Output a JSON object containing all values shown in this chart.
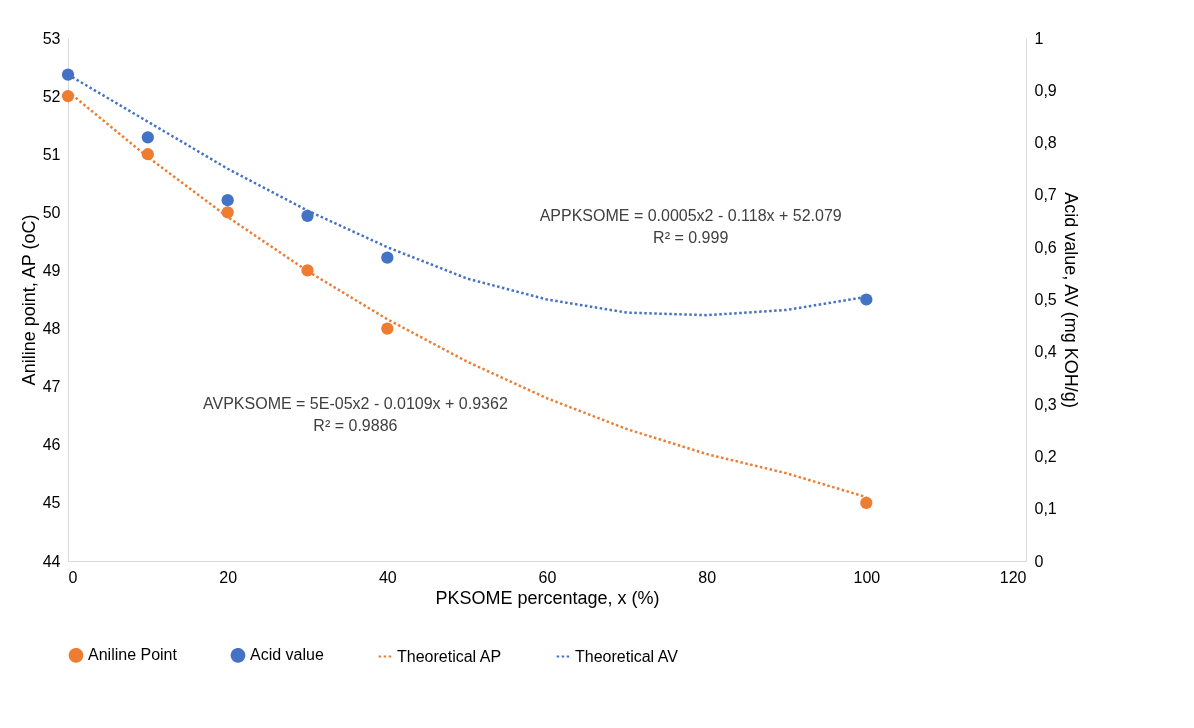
{
  "chart_data": {
    "type": "scatter",
    "xlabel": "PKSOME percentage, x (%)",
    "ylabel": "Aniline point, AP (oC)",
    "y2label": "Acid value, AV (mg KOH/g)",
    "xlim": [
      0,
      120
    ],
    "xticks": [
      0,
      20,
      40,
      60,
      80,
      100,
      120
    ],
    "ylim": [
      44,
      53
    ],
    "yticks": [
      44,
      45,
      46,
      47,
      48,
      49,
      50,
      51,
      52,
      53
    ],
    "y2lim": [
      0,
      1
    ],
    "y2ticks": [
      {
        "value": 0,
        "label": "0"
      },
      {
        "value": 0.1,
        "label": "0,1"
      },
      {
        "value": 0.2,
        "label": "0,2"
      },
      {
        "value": 0.3,
        "label": "0,3"
      },
      {
        "value": 0.4,
        "label": "0,4"
      },
      {
        "value": 0.5,
        "label": "0,5"
      },
      {
        "value": 0.6,
        "label": "0,6"
      },
      {
        "value": 0.7,
        "label": "0,7"
      },
      {
        "value": 0.8,
        "label": "0,8"
      },
      {
        "value": 0.9,
        "label": "0,9"
      },
      {
        "value": 1,
        "label": "1"
      }
    ],
    "legend": "bottom",
    "series": [
      {
        "name": "Aniline Point",
        "marker": "circle",
        "color": "#ed7d31",
        "x": [
          0,
          10,
          20,
          30,
          40,
          100
        ],
        "values": [
          52,
          51,
          50,
          49,
          48,
          45
        ]
      },
      {
        "name": "Acid value",
        "marker": "circle",
        "axis": "y2",
        "color": "#4472c4",
        "x": [
          0,
          10,
          20,
          30,
          40,
          100
        ],
        "values": [
          0.93,
          0.81,
          0.69,
          0.66,
          0.58,
          0.5
        ]
      },
      {
        "name": "Theoretical AP",
        "type": "line",
        "line_style": "dotted",
        "color": "#ed7d31",
        "x": [
          0,
          10,
          20,
          30,
          40,
          50,
          60,
          70,
          80,
          90,
          100
        ],
        "values": [
          52.08,
          50.95,
          49.92,
          48.99,
          48.16,
          47.43,
          46.8,
          46.27,
          45.84,
          45.51,
          45.1
        ]
      },
      {
        "name": "Theoretical AV",
        "type": "line",
        "line_style": "dotted",
        "axis": "y2",
        "color": "#4472c4",
        "x": [
          0,
          10,
          20,
          30,
          40,
          50,
          60,
          70,
          80,
          90,
          100
        ],
        "values": [
          0.93,
          0.84,
          0.75,
          0.67,
          0.6,
          0.54,
          0.5,
          0.475,
          0.47,
          0.48,
          0.505
        ]
      }
    ],
    "annotations": [
      "APPKSOME = 0.0005x2 - 0.118x + 52.079\nR² = 0.999",
      "AVPKSOME = 5E-05x2 - 0.0109x + 0.9362\nR² = 0.9886"
    ]
  }
}
